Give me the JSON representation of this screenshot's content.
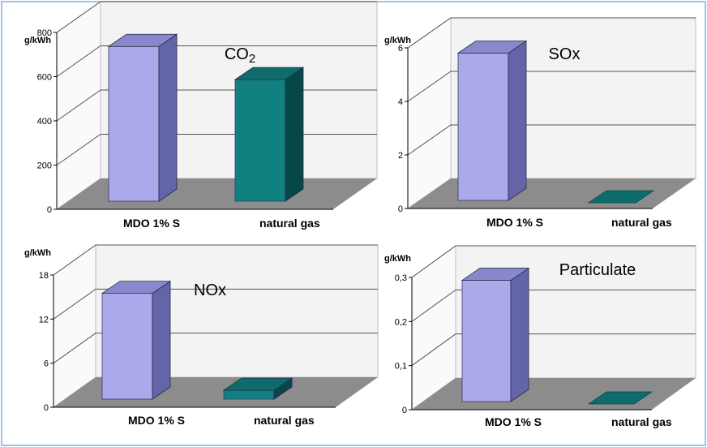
{
  "colors": {
    "mdo_front": "#aaaaea",
    "mdo_top": "#8888cc",
    "mdo_side": "#6464a8",
    "gas_front": "#118080",
    "gas_top": "#0e6c6c",
    "gas_side": "#064848",
    "floor": "#8c8c8c",
    "wall": "#f3f3f3",
    "frame_border": "#9fc4e8"
  },
  "chart_data": [
    {
      "type": "bar",
      "title": "CO",
      "title_sub": "2",
      "ylabel": "g/kWh",
      "categories": [
        "MDO 1% S",
        "natural gas"
      ],
      "values": [
        700,
        550
      ],
      "ylim": [
        0,
        800
      ],
      "yticks": [
        0,
        200,
        400,
        600,
        800
      ],
      "ytick_labels": [
        "0",
        "200",
        "400",
        "600",
        "800"
      ],
      "grid": true
    },
    {
      "type": "bar",
      "title": "SOx",
      "title_sub": "",
      "ylabel": "g/kWh",
      "categories": [
        "MDO 1% S",
        "natural gas"
      ],
      "values": [
        5.5,
        0
      ],
      "ylim": [
        0,
        6
      ],
      "yticks": [
        0,
        2,
        4,
        6
      ],
      "ytick_labels": [
        "0",
        "2",
        "4",
        "6"
      ],
      "grid": true
    },
    {
      "type": "bar",
      "title": "NOx",
      "title_sub": "",
      "ylabel": "g/kWh",
      "categories": [
        "MDO 1% S",
        "natural gas"
      ],
      "values": [
        14.4,
        1.2
      ],
      "ylim": [
        0,
        18
      ],
      "yticks": [
        0,
        6,
        12,
        18
      ],
      "ytick_labels": [
        "0",
        "6",
        "12",
        "18"
      ],
      "grid": true
    },
    {
      "type": "bar",
      "title": "Particulate",
      "title_sub": "",
      "ylabel": "g/kWh",
      "categories": [
        "MDO 1% S",
        "natural gas"
      ],
      "values": [
        0.275,
        0
      ],
      "ylim": [
        0,
        0.3
      ],
      "yticks": [
        0,
        0.1,
        0.2,
        0.3
      ],
      "ytick_labels": [
        "0",
        "0,1",
        "0,2",
        "0,3"
      ],
      "grid": true
    }
  ]
}
